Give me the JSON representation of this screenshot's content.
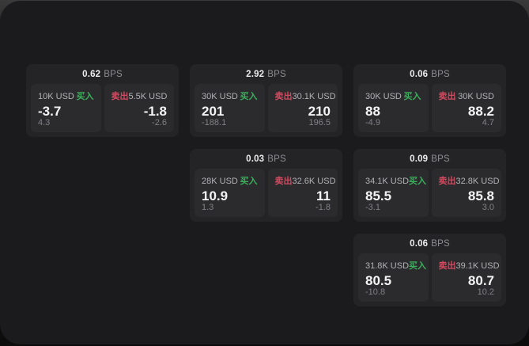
{
  "labels": {
    "bps_unit": "BPS",
    "buy": "买入",
    "sell": "卖出"
  },
  "colors": {
    "buy_green": "#3cae5c",
    "sell_red": "#d24a5f",
    "panel_bg": "#1b1b1d",
    "card_bg": "#242427",
    "tile_bg": "#2b2b2e"
  },
  "cards": [
    {
      "bps": "0.62",
      "buy": {
        "size": "10K USD",
        "value": "-3.7",
        "delta": "4.3"
      },
      "sell": {
        "size": "5.5K USD",
        "value": "-1.8",
        "delta": "-2.6"
      }
    },
    {
      "bps": "2.92",
      "buy": {
        "size": "30K USD",
        "value": "201",
        "delta": "-188.1"
      },
      "sell": {
        "size": "30.1K USD",
        "value": "210",
        "delta": "196.5"
      }
    },
    {
      "bps": "0.06",
      "buy": {
        "size": "30K USD",
        "value": "88",
        "delta": "-4.9"
      },
      "sell": {
        "size": "30K USD",
        "value": "88.2",
        "delta": "4.7"
      }
    },
    {
      "bps": "0.03",
      "buy": {
        "size": "28K USD",
        "value": "10.9",
        "delta": "1.3"
      },
      "sell": {
        "size": "32.6K USD",
        "value": "11",
        "delta": "-1.8"
      }
    },
    {
      "bps": "0.09",
      "buy": {
        "size": "34.1K USD",
        "value": "85.5",
        "delta": "-3.1"
      },
      "sell": {
        "size": "32.8K USD",
        "value": "85.8",
        "delta": "3.0"
      }
    },
    {
      "bps": "0.06",
      "buy": {
        "size": "31.8K USD",
        "value": "80.5",
        "delta": "-10.8"
      },
      "sell": {
        "size": "39.1K USD",
        "value": "80.7",
        "delta": "10.2"
      }
    }
  ]
}
